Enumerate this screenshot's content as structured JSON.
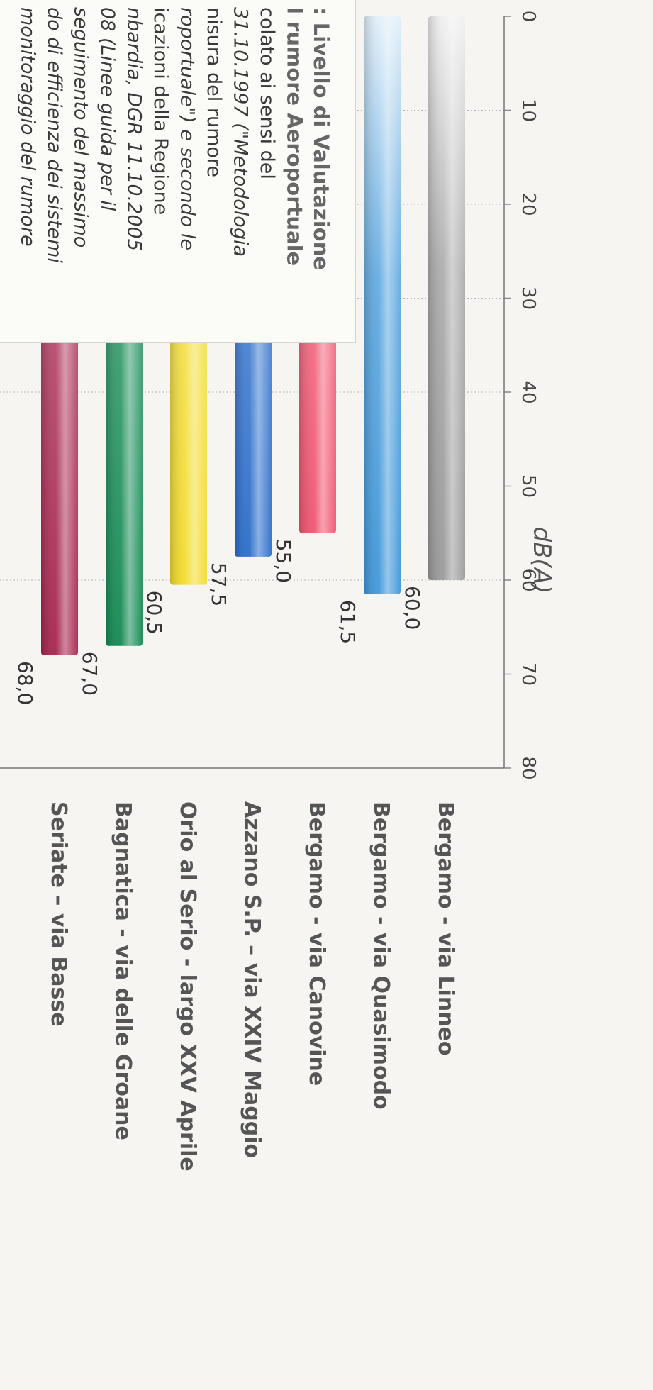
{
  "chart_data": {
    "type": "bar",
    "orientation": "horizontal",
    "title": "",
    "xlabel": "dB(A)",
    "ylabel": "",
    "xlim": [
      0,
      80
    ],
    "ticks": [
      "0",
      "10",
      "20",
      "30",
      "40",
      "50",
      "60",
      "70",
      "80"
    ],
    "grid": true,
    "categories": [
      "Bergamo - via Linneo",
      "Bergamo - via Quasimodo",
      "Bergamo - via Canovine",
      "Azzano S.P. – via XXIV Maggio",
      "Orio al Serio - largo XXV Aprile",
      "Bagnatica - via delle Groane",
      "Seriate – via Basse"
    ],
    "values": [
      60.0,
      61.5,
      55.0,
      57.5,
      60.5,
      67.0,
      68.0
    ],
    "value_labels": [
      "60,0",
      "61,5",
      "55,0",
      "57,5",
      "60,5",
      "67,0",
      "68,0"
    ],
    "colors": [
      "#9a9a9a",
      "#3f97da",
      "#f1546f",
      "#2a6ecc",
      "#f3dc2c",
      "#128a52",
      "#a8244f"
    ]
  },
  "legend_box": {
    "lines": [
      ": Livello di Valutazione",
      "l rumore Aeroportuale",
      "colato ai sensi del",
      "31.10.1997 (\"Metodologia",
      "nisura del rumore",
      "roportuale\") e secondo le",
      "icazioni della Regione",
      "nbardia, DGR 11.10.2005",
      "08 (Linee guida per il",
      "seguimento del massimo",
      "do di efficienza dei sistemi",
      "monitoraggio del rumore"
    ]
  }
}
